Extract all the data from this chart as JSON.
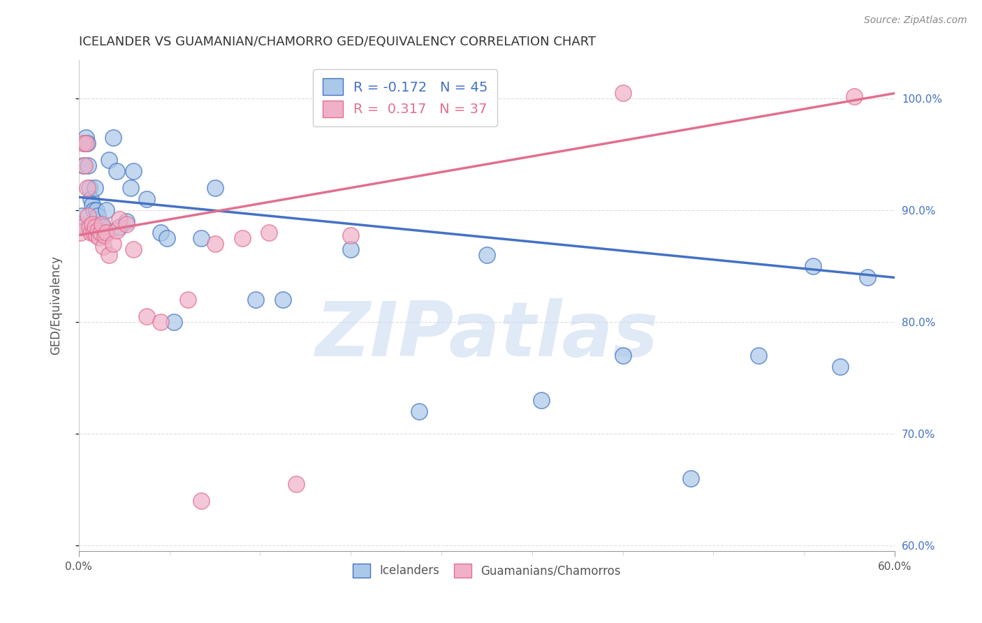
{
  "title": "ICELANDER VS GUAMANIAN/CHAMORRO GED/EQUIVALENCY CORRELATION CHART",
  "source": "Source: ZipAtlas.com",
  "ylabel": "GED/Equivalency",
  "legend_label1": "Icelanders",
  "legend_label2": "Guamanians/Chamorros",
  "R1": -0.172,
  "N1": 45,
  "R2": 0.317,
  "N2": 37,
  "blue_color": "#aac8e8",
  "pink_color": "#f0b0c8",
  "blue_line_color": "#4472c4",
  "pink_line_color": "#e07090",
  "xmin": 0.0,
  "xmax": 0.6,
  "ymin": 0.595,
  "ymax": 1.035,
  "blue_x": [
    0.001,
    0.002,
    0.003,
    0.004,
    0.005,
    0.006,
    0.007,
    0.008,
    0.009,
    0.01,
    0.011,
    0.012,
    0.013,
    0.014,
    0.015,
    0.016,
    0.017,
    0.018,
    0.019,
    0.02,
    0.022,
    0.025,
    0.028,
    0.03,
    0.035,
    0.038,
    0.04,
    0.05,
    0.06,
    0.065,
    0.07,
    0.09,
    0.1,
    0.13,
    0.15,
    0.2,
    0.25,
    0.3,
    0.34,
    0.4,
    0.45,
    0.5,
    0.54,
    0.56,
    0.58
  ],
  "blue_y": [
    0.888,
    0.895,
    0.94,
    0.96,
    0.965,
    0.96,
    0.94,
    0.92,
    0.91,
    0.905,
    0.9,
    0.92,
    0.9,
    0.895,
    0.885,
    0.88,
    0.885,
    0.885,
    0.88,
    0.9,
    0.945,
    0.965,
    0.935,
    0.885,
    0.89,
    0.92,
    0.935,
    0.91,
    0.88,
    0.875,
    0.8,
    0.875,
    0.92,
    0.82,
    0.82,
    0.865,
    0.72,
    0.86,
    0.73,
    0.77,
    0.66,
    0.77,
    0.85,
    0.76,
    0.84
  ],
  "pink_x": [
    0.001,
    0.002,
    0.003,
    0.004,
    0.005,
    0.006,
    0.007,
    0.008,
    0.009,
    0.01,
    0.011,
    0.012,
    0.013,
    0.014,
    0.015,
    0.016,
    0.017,
    0.018,
    0.019,
    0.02,
    0.022,
    0.025,
    0.028,
    0.03,
    0.035,
    0.04,
    0.05,
    0.06,
    0.08,
    0.09,
    0.1,
    0.12,
    0.14,
    0.16,
    0.2,
    0.4,
    0.57
  ],
  "pink_y": [
    0.88,
    0.885,
    0.96,
    0.94,
    0.96,
    0.92,
    0.895,
    0.885,
    0.88,
    0.888,
    0.88,
    0.885,
    0.878,
    0.882,
    0.876,
    0.88,
    0.888,
    0.868,
    0.878,
    0.88,
    0.86,
    0.87,
    0.882,
    0.892,
    0.888,
    0.865,
    0.805,
    0.8,
    0.82,
    0.64,
    0.87,
    0.875,
    0.88,
    0.655,
    0.878,
    1.005,
    1.002
  ],
  "blue_trend_x0": 0.0,
  "blue_trend_x1": 0.6,
  "blue_trend_y0": 0.912,
  "blue_trend_y1": 0.84,
  "pink_trend_x0": 0.0,
  "pink_trend_x1": 0.6,
  "pink_trend_y0": 0.878,
  "pink_trend_y1": 1.005,
  "watermark": "ZIPatlas",
  "watermark_color": "#c8d8f0",
  "grid_color": "#dddddd",
  "yticks": [
    0.6,
    0.7,
    0.8,
    0.9,
    1.0
  ],
  "ytick_labels": [
    "60.0%",
    "70.0%",
    "80.0%",
    "90.0%",
    "100.0%"
  ],
  "xtick_labels_show": [
    "0.0%",
    "60.0%"
  ],
  "xtick_minor_count": 9
}
